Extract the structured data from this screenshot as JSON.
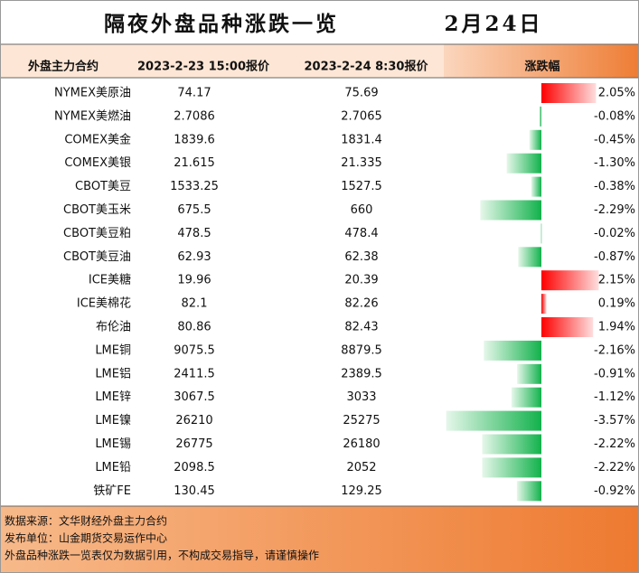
{
  "header": {
    "title": "隔夜外盘品种涨跌一览",
    "date": "2月24日"
  },
  "table": {
    "columns": [
      "外盘主力合约",
      "2023-2-23 15:00报价",
      "2023-2-24 8:30报价",
      "涨跌幅"
    ],
    "rows": [
      {
        "name": "NYMEX美原油",
        "prev": "74.17",
        "curr": "75.69",
        "change": {
          "value": 2.05,
          "label": "2.05%"
        }
      },
      {
        "name": "NYMEX美燃油",
        "prev": "2.7086",
        "curr": "2.7065",
        "change": {
          "value": -0.08,
          "label": "-0.08%"
        }
      },
      {
        "name": "COMEX美金",
        "prev": "1839.6",
        "curr": "1831.4",
        "change": {
          "value": -0.45,
          "label": "-0.45%"
        }
      },
      {
        "name": "COMEX美银",
        "prev": "21.615",
        "curr": "21.335",
        "change": {
          "value": -1.3,
          "label": "-1.30%"
        }
      },
      {
        "name": "CBOT美豆",
        "prev": "1533.25",
        "curr": "1527.5",
        "change": {
          "value": -0.38,
          "label": "-0.38%"
        }
      },
      {
        "name": "CBOT美玉米",
        "prev": "675.5",
        "curr": "660",
        "change": {
          "value": -2.29,
          "label": "-2.29%"
        }
      },
      {
        "name": "CBOT美豆粕",
        "prev": "478.5",
        "curr": "478.4",
        "change": {
          "value": -0.02,
          "label": "-0.02%"
        }
      },
      {
        "name": "CBOT美豆油",
        "prev": "62.93",
        "curr": "62.38",
        "change": {
          "value": -0.87,
          "label": "-0.87%"
        }
      },
      {
        "name": "ICE美糖",
        "prev": "19.96",
        "curr": "20.39",
        "change": {
          "value": 2.15,
          "label": "2.15%"
        }
      },
      {
        "name": "ICE美棉花",
        "prev": "82.1",
        "curr": "82.26",
        "change": {
          "value": 0.19,
          "label": "0.19%"
        }
      },
      {
        "name": "布伦油",
        "prev": "80.86",
        "curr": "82.43",
        "change": {
          "value": 1.94,
          "label": "1.94%"
        }
      },
      {
        "name": "LME铜",
        "prev": "9075.5",
        "curr": "8879.5",
        "change": {
          "value": -2.16,
          "label": "-2.16%"
        }
      },
      {
        "name": "LME铝",
        "prev": "2411.5",
        "curr": "2389.5",
        "change": {
          "value": -0.91,
          "label": "-0.91%"
        }
      },
      {
        "name": "LME锌",
        "prev": "3067.5",
        "curr": "3033",
        "change": {
          "value": -1.12,
          "label": "-1.12%"
        }
      },
      {
        "name": "LME镍",
        "prev": "26210",
        "curr": "25275",
        "change": {
          "value": -3.57,
          "label": "-3.57%"
        }
      },
      {
        "name": "LME锡",
        "prev": "26775",
        "curr": "26180",
        "change": {
          "value": -2.22,
          "label": "-2.22%"
        }
      },
      {
        "name": "LME铅",
        "prev": "2098.5",
        "curr": "2052",
        "change": {
          "value": -2.22,
          "label": "-2.22%"
        }
      },
      {
        "name": "铁矿FE",
        "prev": "130.45",
        "curr": "129.25",
        "change": {
          "value": -0.92,
          "label": "-0.92%"
        }
      }
    ]
  },
  "footer": [
    "数据来源：文华财经外盘主力合约",
    "发布单位：山金期货交易运作中心",
    "外盘品种涨跌一览表仅为数据引用，不构成交易指导，请谨慎操作"
  ]
}
